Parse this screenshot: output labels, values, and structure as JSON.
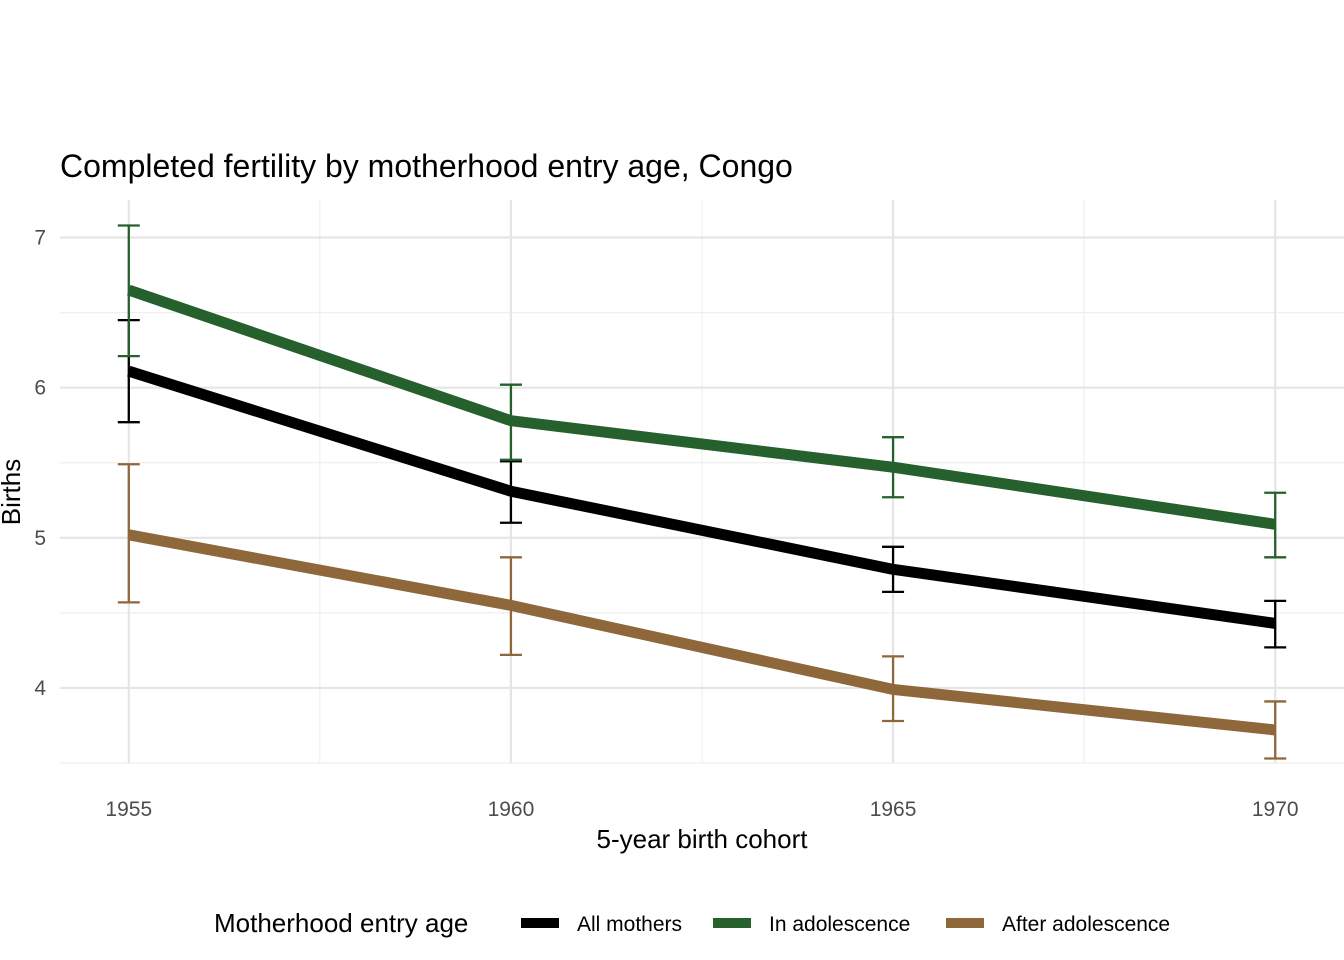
{
  "chart_data": {
    "type": "line",
    "title": "Completed fertility by motherhood entry age,  Congo",
    "xlabel": "5-year birth cohort",
    "ylabel": "Births",
    "x": [
      1955,
      1960,
      1965,
      1970
    ],
    "x_ticks": [
      "1955",
      "1960",
      "1965",
      "1970"
    ],
    "y_ticks": [
      "4",
      "5",
      "6",
      "7"
    ],
    "xlim": [
      1954.1,
      1970.9
    ],
    "ylim": [
      3.5,
      7.25
    ],
    "grid": true,
    "legend": {
      "title": "Motherhood entry age",
      "position": "bottom"
    },
    "series": [
      {
        "name": "All mothers",
        "color": "#000000",
        "values": [
          6.11,
          5.31,
          4.79,
          4.43
        ],
        "lower": [
          5.77,
          5.1,
          4.64,
          4.27
        ],
        "upper": [
          6.45,
          5.51,
          4.94,
          4.58
        ]
      },
      {
        "name": "In adolescence",
        "color": "#25602d",
        "values": [
          6.65,
          5.78,
          5.47,
          5.09
        ],
        "lower": [
          6.21,
          5.52,
          5.27,
          4.87
        ],
        "upper": [
          7.08,
          6.02,
          5.67,
          5.3
        ]
      },
      {
        "name": "After adolescence",
        "color": "#8e673a",
        "values": [
          5.02,
          4.55,
          3.99,
          3.72
        ],
        "lower": [
          4.57,
          4.22,
          3.78,
          3.53
        ],
        "upper": [
          5.49,
          4.87,
          4.21,
          3.91
        ]
      }
    ]
  }
}
